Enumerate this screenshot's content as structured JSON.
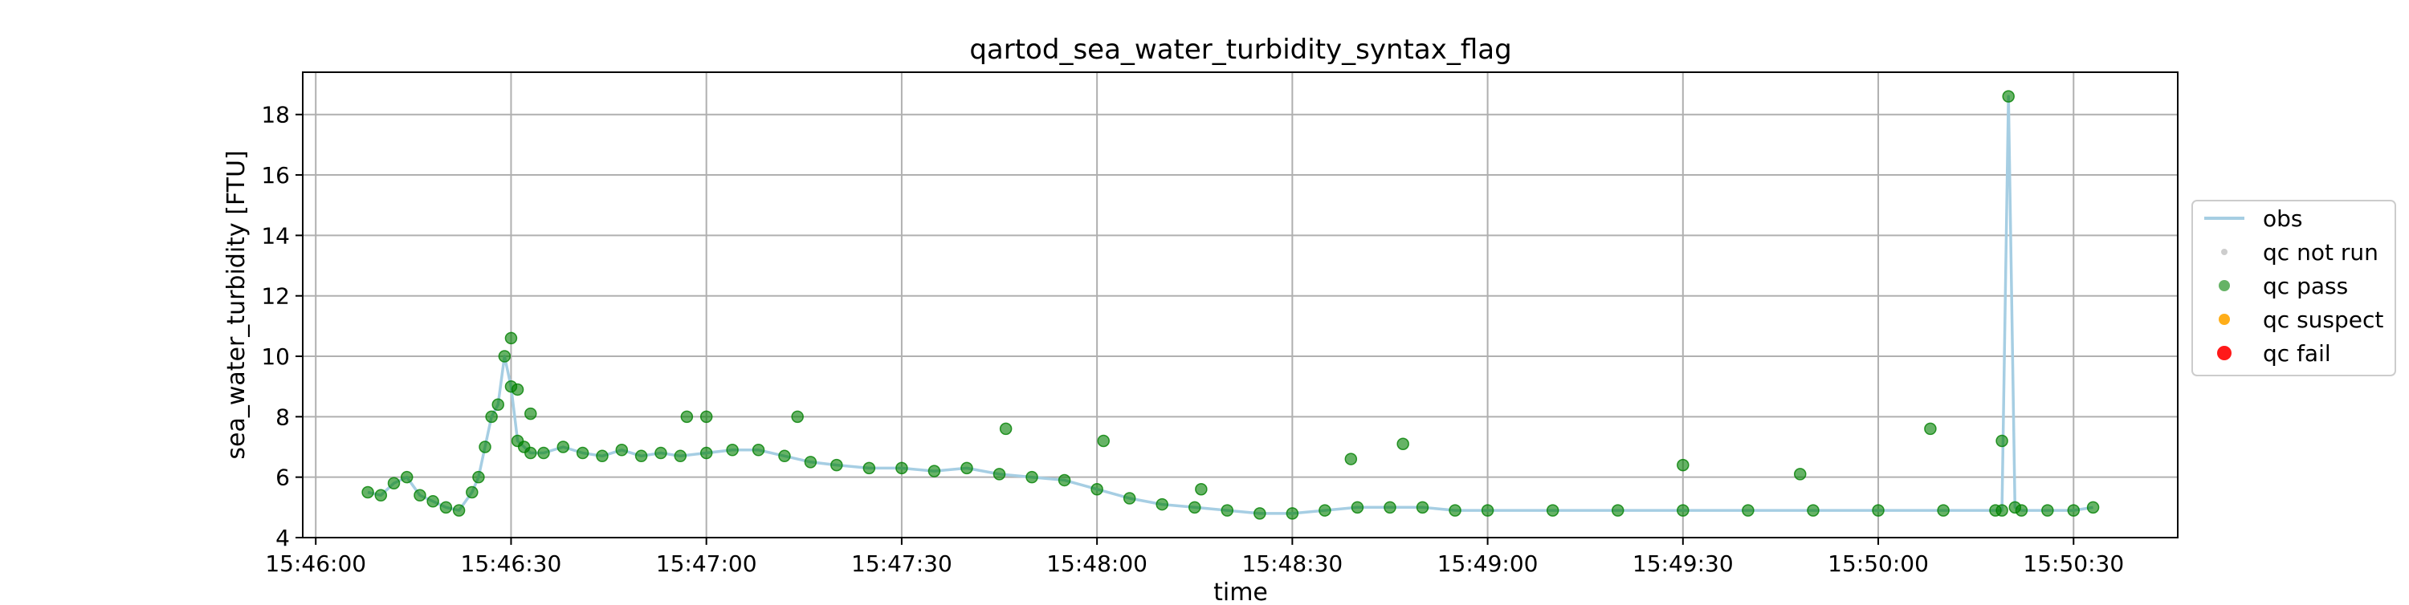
{
  "chart_data": {
    "type": "line",
    "title": "qartod_sea_water_turbidity_syntax_flag",
    "xlabel": "time",
    "ylabel": "sea_water_turbidity [FTU]",
    "x_ticks": [
      "15:46:00",
      "15:46:30",
      "15:47:00",
      "15:47:30",
      "15:48:00",
      "15:48:30",
      "15:49:00",
      "15:49:30",
      "15:50:00",
      "15:50:30"
    ],
    "xlim": [
      "15:45:58",
      "15:50:46"
    ],
    "y_ticks": [
      "4",
      "6",
      "8",
      "10",
      "12",
      "14",
      "16",
      "18"
    ],
    "ylim": [
      4.0,
      19.4
    ],
    "grid": true,
    "legend_placement": "center-right, outside axes",
    "legend": [
      {
        "label": "obs",
        "kind": "line",
        "color": "#a6cee3"
      },
      {
        "label": "qc not run",
        "kind": "marker",
        "color": "#c8c8c8"
      },
      {
        "label": "qc pass",
        "kind": "marker",
        "color": "#008000"
      },
      {
        "label": "qc suspect",
        "kind": "marker",
        "color": "#ffa500"
      },
      {
        "label": "qc fail",
        "kind": "marker",
        "color": "#ff0000"
      }
    ],
    "series": [
      {
        "name": "obs",
        "flag": "qc pass",
        "x": [
          "15:46:08",
          "15:46:10",
          "15:46:12",
          "15:46:14",
          "15:46:16",
          "15:46:18",
          "15:46:20",
          "15:46:22",
          "15:46:24",
          "15:46:25",
          "15:46:26",
          "15:46:27",
          "15:46:28",
          "15:46:29",
          "15:46:30",
          "15:46:31",
          "15:46:32",
          "15:46:33",
          "15:46:35",
          "15:46:38",
          "15:46:41",
          "15:46:44",
          "15:46:47",
          "15:46:50",
          "15:46:53",
          "15:46:56",
          "15:47:00",
          "15:47:04",
          "15:47:08",
          "15:47:12",
          "15:47:16",
          "15:47:20",
          "15:47:25",
          "15:47:30",
          "15:47:35",
          "15:47:40",
          "15:47:45",
          "15:47:50",
          "15:47:55",
          "15:48:00",
          "15:48:05",
          "15:48:10",
          "15:48:15",
          "15:48:20",
          "15:48:25",
          "15:48:30",
          "15:48:35",
          "15:48:40",
          "15:48:45",
          "15:48:50",
          "15:48:55",
          "15:49:00",
          "15:49:10",
          "15:49:20",
          "15:49:30",
          "15:49:40",
          "15:49:50",
          "15:50:00",
          "15:50:10",
          "15:50:18",
          "15:50:19",
          "15:50:20",
          "15:50:21",
          "15:50:22",
          "15:50:26",
          "15:50:30",
          "15:50:33"
        ],
        "values": [
          5.5,
          5.4,
          5.8,
          6.0,
          5.4,
          5.2,
          5.0,
          4.9,
          5.5,
          6.0,
          7.0,
          8.0,
          8.4,
          10.0,
          9.0,
          7.2,
          7.0,
          6.8,
          6.8,
          7.0,
          6.8,
          6.7,
          6.9,
          6.7,
          6.8,
          6.7,
          6.8,
          6.9,
          6.9,
          6.7,
          6.5,
          6.4,
          6.3,
          6.3,
          6.2,
          6.3,
          6.1,
          6.0,
          5.9,
          5.6,
          5.3,
          5.1,
          5.0,
          4.9,
          4.8,
          4.8,
          4.9,
          5.0,
          5.0,
          5.0,
          4.9,
          4.9,
          4.9,
          4.9,
          4.9,
          4.9,
          4.9,
          4.9,
          4.9,
          4.9,
          4.9,
          18.6,
          5.0,
          4.9,
          4.9,
          4.9,
          5.0
        ]
      },
      {
        "name": "qc pass",
        "flag": "qc pass",
        "x": [
          "15:46:30",
          "15:46:31",
          "15:46:33",
          "15:46:57",
          "15:47:00",
          "15:47:14",
          "15:47:46",
          "15:48:01",
          "15:48:16",
          "15:48:39",
          "15:48:47",
          "15:49:30",
          "15:49:48",
          "15:50:08",
          "15:50:19"
        ],
        "values": [
          10.6,
          8.9,
          8.1,
          8.0,
          8.0,
          8.0,
          7.6,
          7.2,
          5.6,
          6.6,
          7.1,
          6.4,
          6.1,
          7.6,
          7.2
        ]
      }
    ]
  }
}
